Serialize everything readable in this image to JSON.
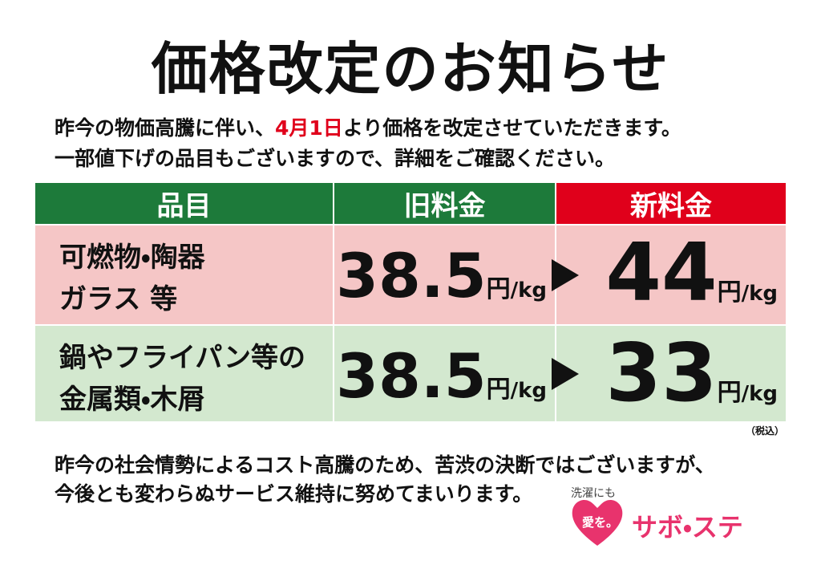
{
  "title": "価格改定のお知らせ",
  "intro": {
    "line1_before": "昨今の物価高騰に伴い、",
    "line1_date": "4月1日",
    "line1_after": "より価格を改定させていただきます。",
    "line2": "一部値下げの品目もございますので、詳細をご確認ください。"
  },
  "table": {
    "headers": [
      "品目",
      "旧料金",
      "新料金"
    ],
    "rows": [
      {
        "item": [
          "可燃物・陶器",
          "ガラス 等"
        ],
        "old_price": 38.5,
        "new_price": 44
      },
      {
        "item": [
          "鍋やフライパン等の",
          "金属類・木屑"
        ],
        "old_price": 38.5,
        "new_price": 33
      }
    ],
    "unit_yen": "円",
    "unit_kg": "/kg",
    "note": "（税込）"
  },
  "closing": [
    "昨今の社会情勢によるコスト高騰のため、苦渋の決断ではございますが、",
    "今後とも変わらぬサービス維持に努めてまいります。"
  ],
  "logo": {
    "tagline": "洗濯にも",
    "heart": "愛を。",
    "name": "サボ・ステ"
  }
}
